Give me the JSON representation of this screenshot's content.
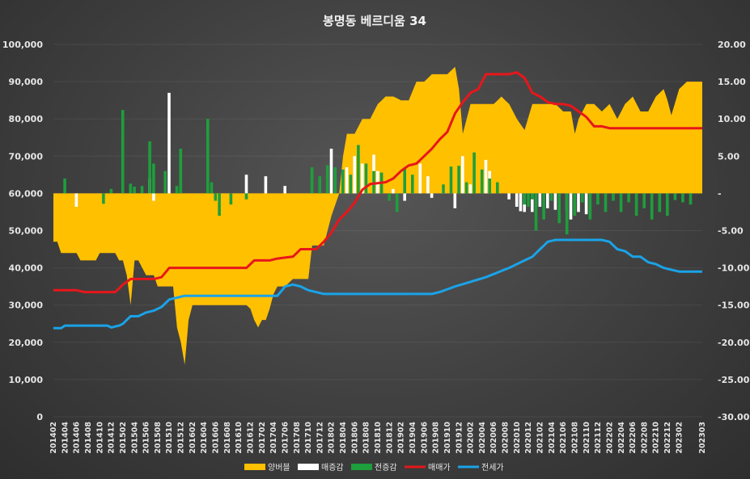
{
  "chart_data": {
    "type": "combo",
    "title": "봉명동 베르디움 34",
    "y_left": {
      "min": 0,
      "max": 100000,
      "step": 10000,
      "ticks": [
        "0",
        "10,000",
        "20,000",
        "30,000",
        "40,000",
        "50,000",
        "60,000",
        "70,000",
        "80,000",
        "90,000",
        "100,000"
      ]
    },
    "y_right": {
      "min": -30,
      "max": 20,
      "step": 5,
      "ticks": [
        "-30.00",
        "-25.00",
        "-20.00",
        "-15.00",
        "-10.00",
        "-5.00",
        "-",
        "5.00",
        "10.00",
        "15.00",
        "20.00"
      ]
    },
    "x_ticks": [
      "201402",
      "201404",
      "201406",
      "201408",
      "201410",
      "201412",
      "201502",
      "201504",
      "201506",
      "201508",
      "201510",
      "201512",
      "201602",
      "201604",
      "201606",
      "201608",
      "201610",
      "201612",
      "201702",
      "201704",
      "201706",
      "201708",
      "201710",
      "201712",
      "201802",
      "201804",
      "201806",
      "201808",
      "201810",
      "201812",
      "201902",
      "201904",
      "201906",
      "201908",
      "201910",
      "201912",
      "202002",
      "202004",
      "202006",
      "202008",
      "202010",
      "202012",
      "202102",
      "202104",
      "202106",
      "202108",
      "202110",
      "202112",
      "202202",
      "202204",
      "202206",
      "202208",
      "202210",
      "202212",
      "202302",
      "202303"
    ],
    "legend": [
      {
        "name": "양버블",
        "color": "#FFC000"
      },
      {
        "name": "매증감",
        "color": "#FFFFFF"
      },
      {
        "name": "전증감",
        "color": "#1E9E3C"
      },
      {
        "name": "매매가",
        "color": "#E8161B"
      },
      {
        "name": "전세가",
        "color": "#1AA3E8"
      }
    ],
    "series": {
      "양버블": [
        [
          0,
          -6.5
        ],
        [
          1,
          -6.5
        ],
        [
          2,
          -8
        ],
        [
          6,
          -8
        ],
        [
          7,
          -9
        ],
        [
          11,
          -9
        ],
        [
          12,
          -8
        ],
        [
          16,
          -8
        ],
        [
          17,
          -9
        ],
        [
          18,
          -9
        ],
        [
          19,
          -11
        ],
        [
          20,
          -15
        ],
        [
          21,
          -9
        ],
        [
          22,
          -9
        ],
        [
          23,
          -10
        ],
        [
          24,
          -11
        ],
        [
          26,
          -11
        ],
        [
          27,
          -12.5
        ],
        [
          29,
          -12.5
        ],
        [
          31,
          -12.5
        ],
        [
          32,
          -18
        ],
        [
          33,
          -20
        ],
        [
          34,
          -23
        ],
        [
          35,
          -17
        ],
        [
          36,
          -15
        ],
        [
          50,
          -15
        ],
        [
          51,
          -15.5
        ],
        [
          52,
          -17
        ],
        [
          53,
          -18
        ],
        [
          54,
          -17
        ],
        [
          55,
          -17
        ],
        [
          56,
          -15.5
        ],
        [
          57,
          -13.5
        ],
        [
          58,
          -12.5
        ],
        [
          60,
          -12.5
        ],
        [
          62,
          -11.5
        ],
        [
          66,
          -11.5
        ],
        [
          67,
          -7
        ],
        [
          70,
          -7
        ],
        [
          71,
          -5
        ],
        [
          72,
          -3
        ],
        [
          73,
          -1.5
        ],
        [
          74,
          0
        ],
        [
          75,
          5
        ],
        [
          76,
          8
        ],
        [
          78,
          8
        ],
        [
          80,
          10
        ],
        [
          82,
          10
        ],
        [
          84,
          12
        ],
        [
          86,
          13
        ],
        [
          88,
          13
        ],
        [
          90,
          12.5
        ],
        [
          92,
          12.5
        ],
        [
          94,
          15
        ],
        [
          96,
          15
        ],
        [
          98,
          16
        ],
        [
          100,
          16
        ],
        [
          102,
          16
        ],
        [
          104,
          17
        ],
        [
          105,
          14
        ],
        [
          106,
          8
        ],
        [
          108,
          12
        ],
        [
          110,
          12
        ],
        [
          112,
          12
        ],
        [
          114,
          12
        ],
        [
          116,
          13
        ],
        [
          118,
          12
        ],
        [
          120,
          10
        ],
        [
          122,
          8.5
        ],
        [
          124,
          12
        ],
        [
          126,
          12
        ],
        [
          128,
          12
        ],
        [
          130,
          12
        ],
        [
          132,
          11
        ],
        [
          134,
          11
        ],
        [
          135,
          8
        ],
        [
          136,
          10
        ],
        [
          138,
          12
        ],
        [
          140,
          12
        ],
        [
          142,
          11
        ],
        [
          144,
          12
        ],
        [
          146,
          10
        ],
        [
          148,
          12
        ],
        [
          150,
          13
        ],
        [
          151,
          12
        ],
        [
          152,
          11
        ],
        [
          154,
          11
        ],
        [
          156,
          13
        ],
        [
          158,
          14
        ],
        [
          159,
          12.5
        ],
        [
          160,
          10.5
        ],
        [
          162,
          14
        ],
        [
          164,
          15
        ],
        [
          166,
          15
        ],
        [
          168,
          15
        ]
      ],
      "매증감": [
        [
          6,
          -1.8
        ],
        [
          25,
          2.0
        ],
        [
          26,
          -1.0
        ],
        [
          30,
          13.5
        ],
        [
          50,
          2.5
        ],
        [
          55,
          2.3
        ],
        [
          60,
          1.0
        ],
        [
          72,
          6.0
        ],
        [
          76,
          3.5
        ],
        [
          78,
          5.0
        ],
        [
          80,
          4.0
        ],
        [
          81,
          3.5
        ],
        [
          83,
          5.2
        ],
        [
          84,
          3.0
        ],
        [
          88,
          0.6
        ],
        [
          91,
          -1.0
        ],
        [
          93,
          1.0
        ],
        [
          95,
          4.0
        ],
        [
          97,
          2.3
        ],
        [
          98,
          -0.6
        ],
        [
          101,
          0.8
        ],
        [
          104,
          -2.0
        ],
        [
          106,
          5.0
        ],
        [
          108,
          1.2
        ],
        [
          112,
          4.5
        ],
        [
          113,
          3.0
        ],
        [
          118,
          -0.8
        ],
        [
          120,
          -1.8
        ],
        [
          121,
          -2.4
        ],
        [
          122,
          -2.5
        ],
        [
          124,
          -2.5
        ],
        [
          126,
          -1.8
        ],
        [
          128,
          -2.0
        ],
        [
          130,
          -2.2
        ],
        [
          133,
          -2.3
        ],
        [
          134,
          -3.5
        ],
        [
          136,
          -2.5
        ],
        [
          138,
          -2.8
        ]
      ],
      "전증감": [
        [
          3,
          2.0
        ],
        [
          13,
          -1.4
        ],
        [
          15,
          0.6
        ],
        [
          18,
          11.2
        ],
        [
          20,
          1.3
        ],
        [
          21,
          0.9
        ],
        [
          23,
          1.0
        ],
        [
          25,
          7.0
        ],
        [
          26,
          4.0
        ],
        [
          29,
          3.0
        ],
        [
          32,
          1.0
        ],
        [
          33,
          6.0
        ],
        [
          40,
          10.0
        ],
        [
          41,
          1.5
        ],
        [
          42,
          -1.0
        ],
        [
          43,
          -3.0
        ],
        [
          46,
          -1.5
        ],
        [
          50,
          -0.8
        ],
        [
          67,
          3.5
        ],
        [
          69,
          2.3
        ],
        [
          71,
          3.8
        ],
        [
          73,
          3.5
        ],
        [
          75,
          3.2
        ],
        [
          77,
          2.5
        ],
        [
          79,
          6.5
        ],
        [
          81,
          4.0
        ],
        [
          83,
          3.0
        ],
        [
          85,
          2.8
        ],
        [
          87,
          -1.0
        ],
        [
          89,
          -2.5
        ],
        [
          91,
          3.5
        ],
        [
          93,
          2.5
        ],
        [
          101,
          1.2
        ],
        [
          103,
          3.6
        ],
        [
          105,
          3.7
        ],
        [
          107,
          1.5
        ],
        [
          109,
          5.5
        ],
        [
          111,
          3.2
        ],
        [
          113,
          2.0
        ],
        [
          115,
          1.5
        ],
        [
          122,
          -1.5
        ],
        [
          123,
          -1.8
        ],
        [
          124,
          -0.8
        ],
        [
          125,
          -5.0
        ],
        [
          127,
          -3.5
        ],
        [
          129,
          -1.0
        ],
        [
          131,
          -4.0
        ],
        [
          133,
          -5.5
        ],
        [
          135,
          -3.0
        ],
        [
          137,
          -1.2
        ],
        [
          139,
          -3.5
        ],
        [
          141,
          -1.5
        ],
        [
          143,
          -2.5
        ],
        [
          145,
          -1.0
        ],
        [
          147,
          -2.5
        ],
        [
          149,
          -1.2
        ],
        [
          151,
          -3.0
        ],
        [
          153,
          -2.0
        ],
        [
          155,
          -3.5
        ],
        [
          157,
          -2.5
        ],
        [
          159,
          -3.0
        ],
        [
          161,
          -0.9
        ],
        [
          163,
          -1.2
        ],
        [
          165,
          -1.5
        ]
      ],
      "매매가": [
        [
          0,
          34000
        ],
        [
          6,
          34000
        ],
        [
          8,
          33500
        ],
        [
          16,
          33500
        ],
        [
          18,
          35500
        ],
        [
          20,
          37000
        ],
        [
          22,
          37000
        ],
        [
          26,
          37000
        ],
        [
          28,
          37500
        ],
        [
          30,
          40000
        ],
        [
          50,
          40000
        ],
        [
          52,
          42000
        ],
        [
          56,
          42000
        ],
        [
          58,
          42500
        ],
        [
          62,
          43000
        ],
        [
          64,
          45000
        ],
        [
          68,
          45000
        ],
        [
          70,
          47000
        ],
        [
          72,
          49500
        ],
        [
          74,
          53000
        ],
        [
          76,
          55000
        ],
        [
          78,
          57500
        ],
        [
          80,
          61000
        ],
        [
          82,
          62500
        ],
        [
          86,
          63000
        ],
        [
          88,
          64000
        ],
        [
          90,
          66000
        ],
        [
          92,
          67500
        ],
        [
          94,
          68000
        ],
        [
          96,
          70000
        ],
        [
          98,
          72000
        ],
        [
          100,
          74500
        ],
        [
          102,
          76500
        ],
        [
          104,
          81500
        ],
        [
          106,
          84500
        ],
        [
          108,
          87000
        ],
        [
          110,
          88000
        ],
        [
          112,
          92000
        ],
        [
          114,
          92000
        ],
        [
          116,
          92000
        ],
        [
          118,
          92000
        ],
        [
          120,
          92500
        ],
        [
          122,
          91000
        ],
        [
          124,
          87000
        ],
        [
          126,
          86000
        ],
        [
          128,
          84500
        ],
        [
          130,
          84000
        ],
        [
          132,
          84000
        ],
        [
          134,
          83500
        ],
        [
          136,
          82000
        ],
        [
          138,
          80500
        ],
        [
          140,
          78000
        ],
        [
          142,
          78000
        ],
        [
          144,
          77500
        ],
        [
          146,
          77500
        ],
        [
          148,
          77500
        ],
        [
          150,
          77500
        ],
        [
          152,
          77500
        ],
        [
          154,
          77500
        ],
        [
          156,
          77500
        ],
        [
          158,
          77500
        ],
        [
          160,
          77500
        ],
        [
          162,
          77500
        ],
        [
          164,
          77500
        ],
        [
          166,
          77500
        ],
        [
          168,
          77500
        ]
      ],
      "전세가": [
        [
          0,
          23800
        ],
        [
          2,
          23800
        ],
        [
          3,
          24500
        ],
        [
          14,
          24500
        ],
        [
          15,
          24000
        ],
        [
          17,
          24500
        ],
        [
          18,
          25000
        ],
        [
          20,
          27000
        ],
        [
          22,
          27000
        ],
        [
          24,
          28000
        ],
        [
          26,
          28500
        ],
        [
          28,
          29500
        ],
        [
          30,
          31500
        ],
        [
          32,
          32000
        ],
        [
          34,
          32500
        ],
        [
          36,
          32500
        ],
        [
          58,
          32500
        ],
        [
          60,
          35000
        ],
        [
          62,
          35500
        ],
        [
          64,
          35000
        ],
        [
          66,
          34000
        ],
        [
          68,
          33500
        ],
        [
          70,
          33000
        ],
        [
          98,
          33000
        ],
        [
          100,
          33500
        ],
        [
          104,
          35000
        ],
        [
          112,
          37500
        ],
        [
          118,
          40000
        ],
        [
          124,
          43000
        ],
        [
          126,
          45000
        ],
        [
          128,
          47000
        ],
        [
          130,
          47500
        ],
        [
          134,
          47500
        ],
        [
          136,
          47500
        ],
        [
          140,
          47500
        ],
        [
          142,
          47500
        ],
        [
          144,
          47000
        ],
        [
          146,
          45000
        ],
        [
          148,
          44500
        ],
        [
          150,
          43000
        ],
        [
          152,
          43000
        ],
        [
          154,
          41500
        ],
        [
          156,
          41000
        ],
        [
          158,
          40000
        ],
        [
          160,
          39500
        ],
        [
          162,
          39000
        ],
        [
          164,
          39000
        ],
        [
          166,
          39000
        ],
        [
          168,
          39000
        ]
      ]
    }
  }
}
